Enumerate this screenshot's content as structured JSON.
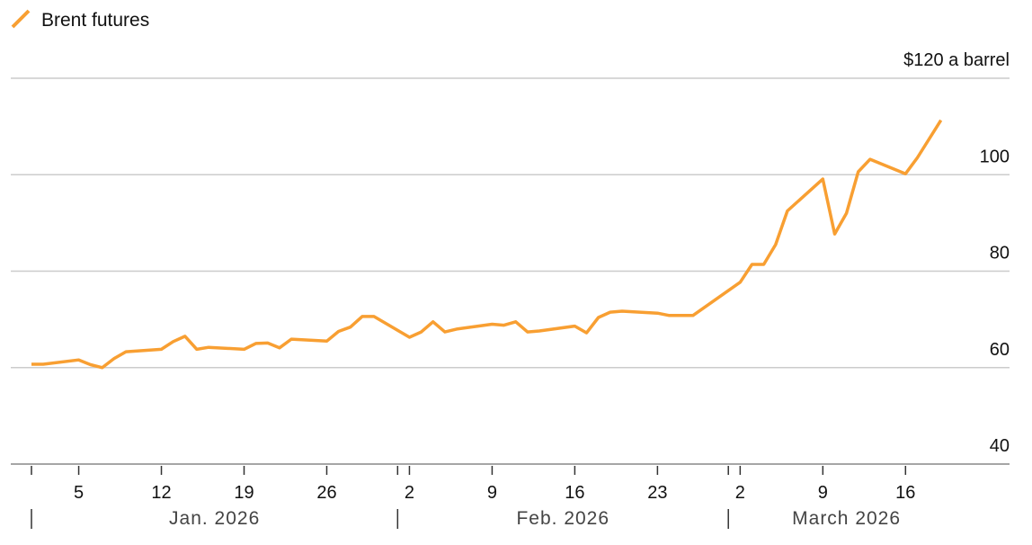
{
  "chart_data": {
    "type": "line",
    "x": [
      "2026-01-01",
      "2026-01-02",
      "2026-01-05",
      "2026-01-06",
      "2026-01-07",
      "2026-01-08",
      "2026-01-09",
      "2026-01-12",
      "2026-01-13",
      "2026-01-14",
      "2026-01-15",
      "2026-01-16",
      "2026-01-19",
      "2026-01-20",
      "2026-01-21",
      "2026-01-22",
      "2026-01-23",
      "2026-01-26",
      "2026-01-27",
      "2026-01-28",
      "2026-01-29",
      "2026-01-30",
      "2026-02-02",
      "2026-02-03",
      "2026-02-04",
      "2026-02-05",
      "2026-02-06",
      "2026-02-09",
      "2026-02-10",
      "2026-02-11",
      "2026-02-12",
      "2026-02-13",
      "2026-02-16",
      "2026-02-17",
      "2026-02-18",
      "2026-02-19",
      "2026-02-20",
      "2026-02-23",
      "2026-02-24",
      "2026-02-25",
      "2026-02-26",
      "2026-03-02",
      "2026-03-03",
      "2026-03-04",
      "2026-03-05",
      "2026-03-06",
      "2026-03-09",
      "2026-03-10",
      "2026-03-11",
      "2026-03-12",
      "2026-03-13",
      "2026-03-16",
      "2026-03-17",
      "2026-03-19"
    ],
    "series": [
      {
        "name": "Brent futures",
        "color": "#f89f32",
        "values": [
          60.7,
          60.7,
          61.6,
          60.6,
          60.0,
          61.9,
          63.3,
          63.8,
          65.4,
          66.5,
          63.8,
          64.2,
          63.8,
          65.0,
          65.1,
          64.1,
          65.9,
          65.5,
          67.5,
          68.4,
          70.6,
          70.6,
          66.3,
          67.4,
          69.5,
          67.4,
          68.0,
          69.0,
          68.8,
          69.5,
          67.4,
          67.6,
          68.6,
          67.2,
          70.4,
          71.5,
          71.7,
          71.3,
          70.8,
          70.8,
          70.8,
          77.7,
          81.4,
          81.4,
          85.5,
          92.5,
          99.1,
          87.7,
          92.0,
          100.6,
          103.2,
          100.2,
          103.5,
          111.3
        ]
      }
    ],
    "xlim": [
      "2026-01-01",
      "2026-03-21"
    ],
    "xticks": [
      {
        "value": "2026-01-05",
        "label": "5"
      },
      {
        "value": "2026-01-12",
        "label": "12"
      },
      {
        "value": "2026-01-19",
        "label": "19"
      },
      {
        "value": "2026-01-26",
        "label": "26"
      },
      {
        "value": "2026-02-02",
        "label": "2"
      },
      {
        "value": "2026-02-09",
        "label": "9"
      },
      {
        "value": "2026-02-16",
        "label": "16"
      },
      {
        "value": "2026-02-23",
        "label": "23"
      },
      {
        "value": "2026-03-02",
        "label": "2"
      },
      {
        "value": "2026-03-09",
        "label": "9"
      },
      {
        "value": "2026-03-16",
        "label": "16"
      }
    ],
    "months": [
      {
        "value": "2026-01-01",
        "label": "Jan. 2026"
      },
      {
        "value": "2026-02-01",
        "label": "Feb. 2026"
      },
      {
        "value": "2026-03-01",
        "label": "March 2026"
      }
    ],
    "ylim": [
      40,
      120
    ],
    "yticks": [
      40,
      60,
      80,
      100,
      {
        "value": 120,
        "label": "$120 a barrel"
      }
    ],
    "grid": true
  }
}
